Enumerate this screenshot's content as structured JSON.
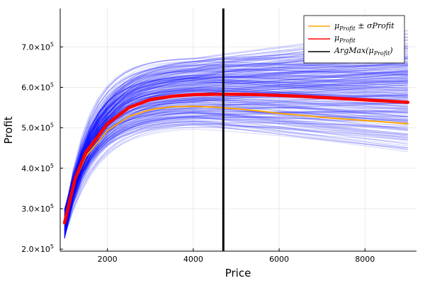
{
  "chart_data": {
    "type": "line",
    "xlabel": "Price",
    "ylabel": "Profit",
    "xlim": [
      900,
      9200
    ],
    "ylim": [
      195000,
      795000
    ],
    "x_ticks": [
      2000,
      4000,
      6000,
      8000
    ],
    "x_tick_labels": [
      "2000",
      "4000",
      "6000",
      "8000"
    ],
    "y_ticks": [
      200000,
      300000,
      400000,
      500000,
      600000,
      700000
    ],
    "y_tick_labels": [
      {
        "base": "2.0×10",
        "exp": "5"
      },
      {
        "base": "3.0×10",
        "exp": "5"
      },
      {
        "base": "4.0×10",
        "exp": "5"
      },
      {
        "base": "5.0×10",
        "exp": "5"
      },
      {
        "base": "6.0×10",
        "exp": "5"
      },
      {
        "base": "7.0×10",
        "exp": "5"
      }
    ],
    "grid": true,
    "legend_position": "top-right",
    "colors": {
      "samples": "#0000ff",
      "mean": "#ff0000",
      "band": "#ffa500",
      "argmax": "#000000"
    },
    "sample_curves": {
      "count": 300,
      "x_range": [
        1000,
        9000
      ],
      "start_value_range": [
        225000,
        300000
      ],
      "peak_value_range": [
        500000,
        680000
      ],
      "end_value_range": [
        430000,
        740000
      ]
    },
    "series": [
      {
        "name": "μ_Profit",
        "legend_label": "μProfit",
        "x": [
          1000,
          1250,
          1500,
          2000,
          2500,
          3000,
          3500,
          4000,
          4500,
          5000,
          5500,
          6000,
          6500,
          7000,
          7500,
          8000,
          8500,
          9000
        ],
        "y": [
          265000,
          375000,
          440000,
          510000,
          550000,
          570000,
          578000,
          582000,
          583000,
          583000,
          582000,
          580000,
          578000,
          575000,
          572000,
          569000,
          566000,
          563000
        ]
      },
      {
        "name": "μ_Profit ± σProfit",
        "legend_label": "μProfit ± σProfit",
        "x": [
          1000,
          1250,
          1500,
          2000,
          2500,
          3000,
          3500,
          4000,
          4500,
          5000,
          5500,
          6000,
          6500,
          7000,
          7500,
          8000,
          8500,
          9000
        ],
        "y": [
          262000,
          370000,
          430000,
          493000,
          528000,
          545000,
          552000,
          553000,
          551000,
          547000,
          542000,
          536000,
          531000,
          526000,
          522000,
          518000,
          514000,
          510000
        ]
      }
    ],
    "vlines": [
      {
        "name": "ArgMax(μProfit)",
        "legend_label": "ArgMax(μProfit)",
        "x": 4700
      }
    ]
  }
}
